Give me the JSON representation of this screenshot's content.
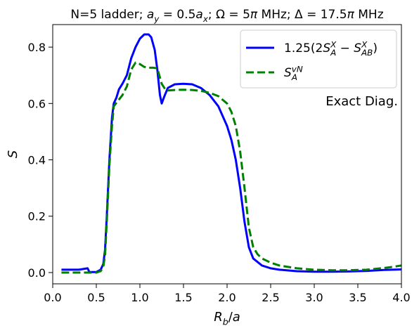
{
  "chart_data": {
    "type": "line",
    "title_parts": [
      {
        "t": "N=5 ladder; ",
        "s": "n"
      },
      {
        "t": "a",
        "s": "i"
      },
      {
        "t": "y",
        "s": "isub"
      },
      {
        "t": " = 0.5",
        "s": "n"
      },
      {
        "t": "a",
        "s": "i"
      },
      {
        "t": "x",
        "s": "isub"
      },
      {
        "t": "; Ω = 5",
        "s": "n"
      },
      {
        "t": "π",
        "s": "i"
      },
      {
        "t": " MHz; Δ = 17.5",
        "s": "n"
      },
      {
        "t": "π",
        "s": "i"
      },
      {
        "t": " MHz",
        "s": "n"
      }
    ],
    "xlabel_parts": [
      {
        "t": "R",
        "s": "i"
      },
      {
        "t": "b",
        "s": "isub"
      },
      {
        "t": "/",
        "s": "n"
      },
      {
        "t": "a",
        "s": "i"
      }
    ],
    "ylabel": "S",
    "xlim": [
      0.0,
      4.0
    ],
    "ylim": [
      -0.04,
      0.88
    ],
    "xticks": [
      0.0,
      0.5,
      1.0,
      1.5,
      2.0,
      2.5,
      3.0,
      3.5,
      4.0
    ],
    "xtick_labels": [
      "0.0",
      "0.5",
      "1.0",
      "1.5",
      "2.0",
      "2.5",
      "3.0",
      "3.5",
      "4.0"
    ],
    "yticks": [
      0.0,
      0.2,
      0.4,
      0.6,
      0.8
    ],
    "ytick_labels": [
      "0.0",
      "0.2",
      "0.4",
      "0.6",
      "0.8"
    ],
    "grid": false,
    "legend_position": "top-right",
    "annotation": "Exact Diag.",
    "series": [
      {
        "legend_parts": [
          {
            "t": "1.25(2",
            "s": "n"
          },
          {
            "t": "S",
            "s": "i"
          },
          {
            "t": "X",
            "s": "isupsub",
            "sub": "A"
          },
          {
            "t": " − ",
            "s": "n"
          },
          {
            "t": "S",
            "s": "i"
          },
          {
            "t": "X",
            "s": "isupsub",
            "sub": "AB"
          },
          {
            "t": ")",
            "s": "n"
          }
        ],
        "color": "#0000ff",
        "dash": "solid",
        "points": [
          [
            0.1,
            0.01
          ],
          [
            0.2,
            0.01
          ],
          [
            0.3,
            0.01
          ],
          [
            0.4,
            0.015
          ],
          [
            0.42,
            0.002
          ],
          [
            0.5,
            0.002
          ],
          [
            0.55,
            0.01
          ],
          [
            0.58,
            0.03
          ],
          [
            0.6,
            0.08
          ],
          [
            0.62,
            0.2
          ],
          [
            0.65,
            0.4
          ],
          [
            0.68,
            0.55
          ],
          [
            0.7,
            0.6
          ],
          [
            0.73,
            0.62
          ],
          [
            0.76,
            0.65
          ],
          [
            0.8,
            0.67
          ],
          [
            0.85,
            0.7
          ],
          [
            0.9,
            0.76
          ],
          [
            0.95,
            0.8
          ],
          [
            1.0,
            0.83
          ],
          [
            1.05,
            0.845
          ],
          [
            1.1,
            0.845
          ],
          [
            1.13,
            0.835
          ],
          [
            1.17,
            0.79
          ],
          [
            1.2,
            0.72
          ],
          [
            1.23,
            0.63
          ],
          [
            1.25,
            0.6
          ],
          [
            1.28,
            0.625
          ],
          [
            1.32,
            0.655
          ],
          [
            1.4,
            0.668
          ],
          [
            1.5,
            0.67
          ],
          [
            1.6,
            0.668
          ],
          [
            1.7,
            0.655
          ],
          [
            1.8,
            0.63
          ],
          [
            1.9,
            0.59
          ],
          [
            2.0,
            0.52
          ],
          [
            2.05,
            0.47
          ],
          [
            2.1,
            0.4
          ],
          [
            2.15,
            0.3
          ],
          [
            2.2,
            0.18
          ],
          [
            2.25,
            0.09
          ],
          [
            2.3,
            0.05
          ],
          [
            2.4,
            0.025
          ],
          [
            2.5,
            0.015
          ],
          [
            2.6,
            0.01
          ],
          [
            2.8,
            0.005
          ],
          [
            3.0,
            0.003
          ],
          [
            3.2,
            0.003
          ],
          [
            3.4,
            0.004
          ],
          [
            3.6,
            0.006
          ],
          [
            3.8,
            0.009
          ],
          [
            4.0,
            0.011
          ]
        ]
      },
      {
        "legend_parts": [
          {
            "t": "S",
            "s": "i"
          },
          {
            "t": "vN",
            "s": "isupsub",
            "sub": "A"
          }
        ],
        "color": "#008000",
        "dash": "dashed",
        "points": [
          [
            0.1,
            0.0
          ],
          [
            0.2,
            0.0
          ],
          [
            0.3,
            0.0
          ],
          [
            0.4,
            0.0
          ],
          [
            0.5,
            0.0
          ],
          [
            0.55,
            0.005
          ],
          [
            0.58,
            0.02
          ],
          [
            0.6,
            0.06
          ],
          [
            0.62,
            0.18
          ],
          [
            0.65,
            0.38
          ],
          [
            0.68,
            0.52
          ],
          [
            0.7,
            0.59
          ],
          [
            0.75,
            0.61
          ],
          [
            0.8,
            0.63
          ],
          [
            0.85,
            0.66
          ],
          [
            0.9,
            0.72
          ],
          [
            0.95,
            0.745
          ],
          [
            1.0,
            0.74
          ],
          [
            1.05,
            0.73
          ],
          [
            1.1,
            0.727
          ],
          [
            1.15,
            0.727
          ],
          [
            1.2,
            0.725
          ],
          [
            1.25,
            0.67
          ],
          [
            1.3,
            0.646
          ],
          [
            1.4,
            0.648
          ],
          [
            1.5,
            0.649
          ],
          [
            1.6,
            0.648
          ],
          [
            1.7,
            0.645
          ],
          [
            1.8,
            0.638
          ],
          [
            1.9,
            0.626
          ],
          [
            2.0,
            0.6
          ],
          [
            2.05,
            0.57
          ],
          [
            2.1,
            0.52
          ],
          [
            2.15,
            0.43
          ],
          [
            2.2,
            0.3
          ],
          [
            2.25,
            0.16
          ],
          [
            2.3,
            0.09
          ],
          [
            2.35,
            0.065
          ],
          [
            2.4,
            0.05
          ],
          [
            2.5,
            0.035
          ],
          [
            2.6,
            0.025
          ],
          [
            2.8,
            0.015
          ],
          [
            3.0,
            0.01
          ],
          [
            3.2,
            0.008
          ],
          [
            3.4,
            0.008
          ],
          [
            3.6,
            0.01
          ],
          [
            3.8,
            0.016
          ],
          [
            3.9,
            0.02
          ],
          [
            4.0,
            0.025
          ]
        ]
      }
    ]
  }
}
